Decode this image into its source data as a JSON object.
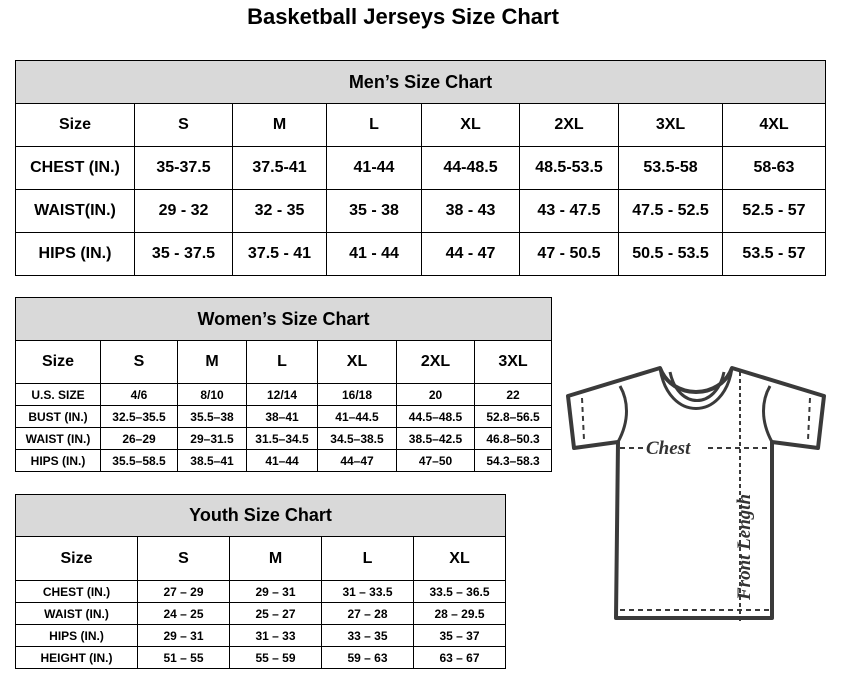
{
  "title": "Basketball Jerseys Size Chart",
  "men": {
    "title": "Men’s Size Chart",
    "rows": [
      [
        "Size",
        "S",
        "M",
        "L",
        "XL",
        "2XL",
        "3XL",
        "4XL"
      ],
      [
        "CHEST (IN.)",
        "35-37.5",
        "37.5-41",
        "41-44",
        "44-48.5",
        "48.5-53.5",
        "53.5-58",
        "58-63"
      ],
      [
        "WAIST(IN.)",
        "29 - 32",
        "32 - 35",
        "35 - 38",
        "38 - 43",
        "43 - 47.5",
        "47.5 - 52.5",
        "52.5 - 57"
      ],
      [
        "HIPS (IN.)",
        "35 - 37.5",
        "37.5 - 41",
        "41 - 44",
        "44 - 47",
        "47 - 50.5",
        "50.5 - 53.5",
        "53.5 - 57"
      ]
    ]
  },
  "women": {
    "title": "Women’s Size Chart",
    "rows": [
      [
        "Size",
        "S",
        "M",
        "L",
        "XL",
        "2XL",
        "3XL"
      ],
      [
        "U.S.  SIZE",
        "4/6",
        "8/10",
        "12/14",
        "16/18",
        "20",
        "22"
      ],
      [
        "BUST  (IN.)",
        "32.5–35.5",
        "35.5–38",
        "38–41",
        "41–44.5",
        "44.5–48.5",
        "52.8–56.5"
      ],
      [
        "WAIST  (IN.)",
        "26–29",
        "29–31.5",
        "31.5–34.5",
        "34.5–38.5",
        "38.5–42.5",
        "46.8–50.3"
      ],
      [
        "HIPS  (IN.)",
        "35.5–58.5",
        "38.5–41",
        "41–44",
        "44–47",
        "47–50",
        "54.3–58.3"
      ]
    ]
  },
  "youth": {
    "title": "Youth Size Chart",
    "rows": [
      [
        "Size",
        "S",
        "M",
        "L",
        "XL"
      ],
      [
        "CHEST  (IN.)",
        "27  –  29",
        "29  –  31",
        "31  –  33.5",
        "33.5  –  36.5"
      ],
      [
        "WAIST  (IN.)",
        "24  –  25",
        "25  –  27",
        "27  –  28",
        "28  –  29.5"
      ],
      [
        "HIPS  (IN.)",
        "29  –  31",
        "31  –  33",
        "33  –  35",
        "35  –  37"
      ],
      [
        "HEIGHT  (IN.)",
        "51  –  55",
        "55  –  59",
        "59  –  63",
        "63  –  67"
      ]
    ]
  },
  "diagram": {
    "chest_label": "Chest",
    "length_label": "Front Length"
  }
}
